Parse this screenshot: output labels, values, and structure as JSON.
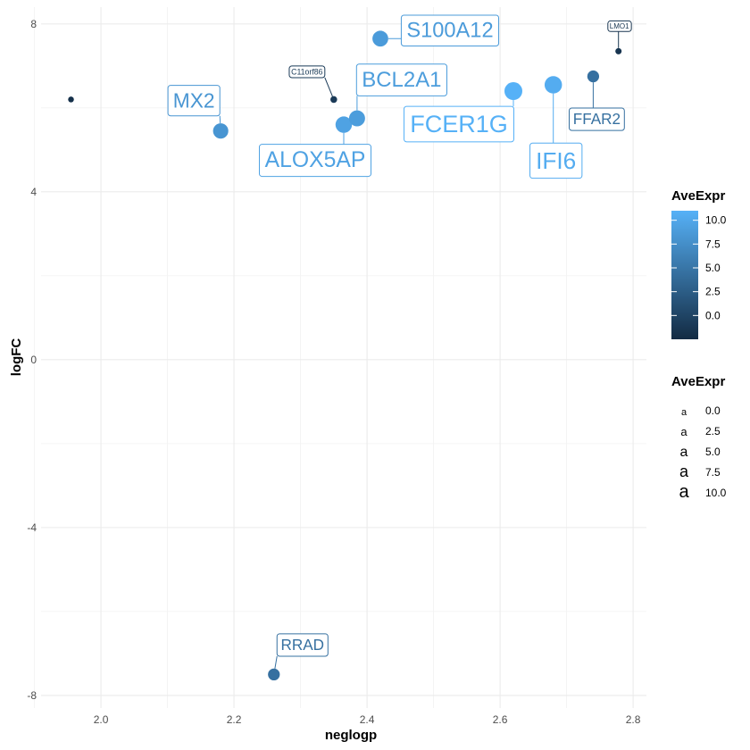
{
  "chart_data": {
    "type": "scatter",
    "xlabel": "neglogp",
    "ylabel": "logFC",
    "xlim": [
      1.91,
      2.82
    ],
    "ylim": [
      -8.3,
      8.4
    ],
    "x_ticks": [
      2.0,
      2.2,
      2.4,
      2.6,
      2.8
    ],
    "x_tick_labels": [
      "2.0",
      "2.2",
      "2.4",
      "2.6",
      "2.8"
    ],
    "y_ticks": [
      -8,
      -4,
      0,
      4,
      8
    ],
    "y_tick_labels": [
      "-8",
      "-4",
      "0",
      "4",
      "8"
    ],
    "grid": true,
    "color_scale": {
      "low": "#132B43",
      "high": "#56B1F7",
      "min": -2.5,
      "max": 11
    },
    "points": [
      {
        "x": 1.955,
        "y": 6.2,
        "ave_expr": -2.0,
        "label": ""
      },
      {
        "x": 2.18,
        "y": 5.45,
        "ave_expr": 8.2,
        "label": "MX2"
      },
      {
        "x": 2.26,
        "y": -7.5,
        "ave_expr": 4.5,
        "label": "RRAD"
      },
      {
        "x": 2.35,
        "y": 6.2,
        "ave_expr": -1.0,
        "label": "C11orf86"
      },
      {
        "x": 2.365,
        "y": 5.6,
        "ave_expr": 9.5,
        "label": "ALOX5AP"
      },
      {
        "x": 2.385,
        "y": 5.75,
        "ave_expr": 9.0,
        "label": "BCL2A1"
      },
      {
        "x": 2.42,
        "y": 7.65,
        "ave_expr": 8.8,
        "label": "S100A12"
      },
      {
        "x": 2.62,
        "y": 6.4,
        "ave_expr": 11.0,
        "label": "FCER1G"
      },
      {
        "x": 2.68,
        "y": 6.55,
        "ave_expr": 10.5,
        "label": "IFI6"
      },
      {
        "x": 2.74,
        "y": 6.75,
        "ave_expr": 4.5,
        "label": "FFAR2"
      },
      {
        "x": 2.778,
        "y": 7.35,
        "ave_expr": -1.5,
        "label": "LMO1"
      }
    ],
    "legends": [
      {
        "title": "AveExpr",
        "kind": "colorbar",
        "breaks": [
          "10.0",
          "7.5",
          "5.0",
          "2.5",
          "0.0"
        ]
      },
      {
        "title": "AveExpr",
        "kind": "size",
        "glyph": "a",
        "breaks": [
          "0.0",
          "2.5",
          "5.0",
          "7.5",
          "10.0"
        ]
      }
    ]
  }
}
